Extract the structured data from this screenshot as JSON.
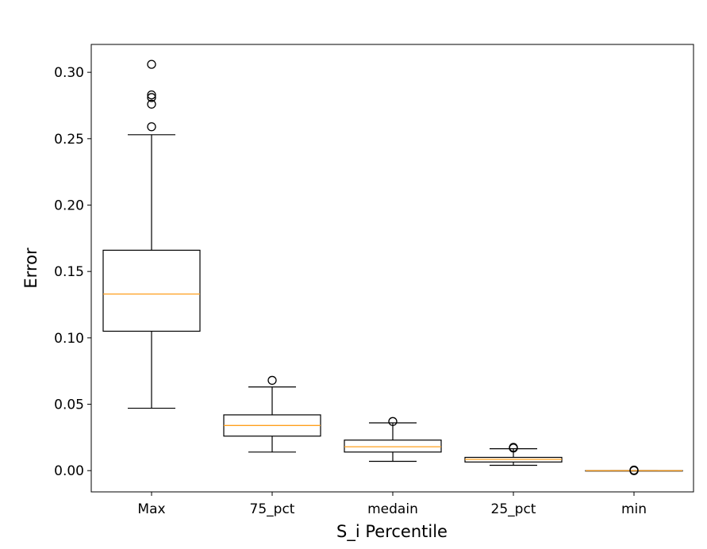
{
  "chart_data": {
    "type": "box",
    "title": "",
    "xlabel": "S_i Percentile",
    "ylabel": "Error",
    "ylim": [
      -0.016,
      0.321
    ],
    "yticks": [
      0.0,
      0.05,
      0.1,
      0.15,
      0.2,
      0.25,
      0.3
    ],
    "ytick_labels": [
      "0.00",
      "0.05",
      "0.10",
      "0.15",
      "0.20",
      "0.25",
      "0.30"
    ],
    "categories": [
      "Max",
      "75_pct",
      "medain",
      "25_pct",
      "min"
    ],
    "grid": false,
    "legend": "none",
    "colors": {
      "box": "#000000",
      "median": "#ff9f1c",
      "frame": "#000000",
      "background": "#ffffff"
    },
    "boxes": [
      {
        "category": "Max",
        "whisker_low": 0.047,
        "q1": 0.105,
        "median": 0.133,
        "q3": 0.166,
        "whisker_high": 0.253,
        "outliers": [
          0.259,
          0.276,
          0.281,
          0.283,
          0.306
        ]
      },
      {
        "category": "75_pct",
        "whisker_low": 0.014,
        "q1": 0.026,
        "median": 0.034,
        "q3": 0.042,
        "whisker_high": 0.063,
        "outliers": [
          0.068
        ]
      },
      {
        "category": "medain",
        "whisker_low": 0.007,
        "q1": 0.014,
        "median": 0.018,
        "q3": 0.023,
        "whisker_high": 0.036,
        "outliers": [
          0.037
        ]
      },
      {
        "category": "25_pct",
        "whisker_low": 0.004,
        "q1": 0.0065,
        "median": 0.0085,
        "q3": 0.01,
        "whisker_high": 0.0165,
        "outliers": [
          0.017,
          0.0175
        ]
      },
      {
        "category": "min",
        "whisker_low": 0.0,
        "q1": 0.0,
        "median": 0.0,
        "q3": 0.0,
        "whisker_high": 0.0,
        "outliers": [
          0.0,
          0.0002,
          0.0004
        ]
      }
    ]
  }
}
